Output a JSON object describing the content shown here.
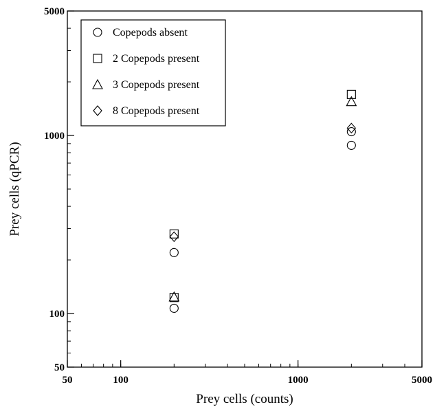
{
  "chart_data": {
    "type": "scatter",
    "title": "",
    "xlabel": "Prey cells (counts)",
    "ylabel": "Prey cells (qPCR)",
    "xscale": "log",
    "yscale": "log",
    "xlim": [
      50,
      5000
    ],
    "ylim": [
      50,
      5000
    ],
    "x_ticks": [
      50,
      100,
      1000,
      5000
    ],
    "x_tick_labels": [
      "50",
      "100",
      "1000",
      "5000"
    ],
    "y_ticks": [
      50,
      100,
      1000,
      5000
    ],
    "y_tick_labels": [
      "50",
      "100",
      "1000",
      "5000"
    ],
    "grid": false,
    "legend_position": "top-left",
    "series": [
      {
        "name": "Copepods absent",
        "marker": "circle",
        "points": [
          [
            200,
            107
          ],
          [
            200,
            220
          ],
          [
            2000,
            880
          ],
          [
            2000,
            1050
          ]
        ]
      },
      {
        "name": "2 Copepods present",
        "marker": "square",
        "points": [
          [
            200,
            123
          ],
          [
            200,
            280
          ],
          [
            2000,
            1700
          ]
        ]
      },
      {
        "name": "3 Copepods present",
        "marker": "triangle",
        "points": [
          [
            200,
            124
          ],
          [
            2000,
            1550
          ]
        ]
      },
      {
        "name": "8 Copepods present",
        "marker": "diamond",
        "points": [
          [
            200,
            270
          ],
          [
            2000,
            1100
          ]
        ]
      }
    ]
  }
}
